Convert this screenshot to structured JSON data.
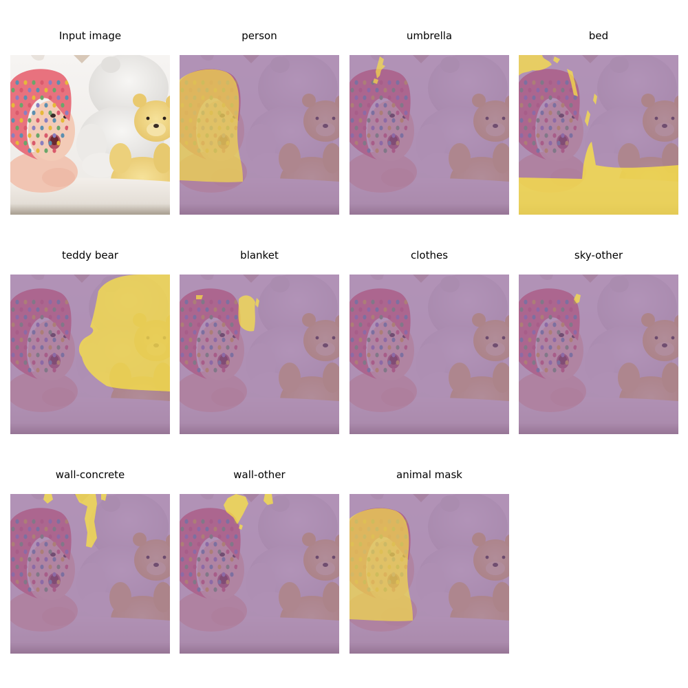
{
  "figure": {
    "panels": [
      {
        "id": "input",
        "title": "Input image",
        "kind": "input"
      },
      {
        "id": "person",
        "title": "person",
        "kind": "mask",
        "mask": "person"
      },
      {
        "id": "umbrella",
        "title": "umbrella",
        "kind": "mask",
        "mask": "umbrella"
      },
      {
        "id": "bed",
        "title": "bed",
        "kind": "mask",
        "mask": "bed"
      },
      {
        "id": "teddy-bear",
        "title": "teddy bear",
        "kind": "mask",
        "mask": "teddy-bear"
      },
      {
        "id": "blanket",
        "title": "blanket",
        "kind": "mask",
        "mask": "blanket"
      },
      {
        "id": "clothes",
        "title": "clothes",
        "kind": "mask",
        "mask": "none"
      },
      {
        "id": "sky-other",
        "title": "sky-other",
        "kind": "mask",
        "mask": "sky-other"
      },
      {
        "id": "wall-concrete",
        "title": "wall-concrete",
        "kind": "mask",
        "mask": "wall-concrete"
      },
      {
        "id": "wall-other",
        "title": "wall-other",
        "kind": "mask",
        "mask": "wall-other"
      },
      {
        "id": "animal-mask",
        "title": "animal mask",
        "kind": "mask",
        "mask": "person"
      }
    ],
    "colors": {
      "mask_overlay": "#8d5f98",
      "mask_highlight": "#fde740",
      "background_wall": "#f2f0ee",
      "hat_pink": "#e8727e",
      "skin": "#f0c2ae",
      "teddy_yellow": "#f1d77e",
      "white_bear": "#e9e7e4",
      "bed_sheet": "#ebe6e0"
    }
  }
}
